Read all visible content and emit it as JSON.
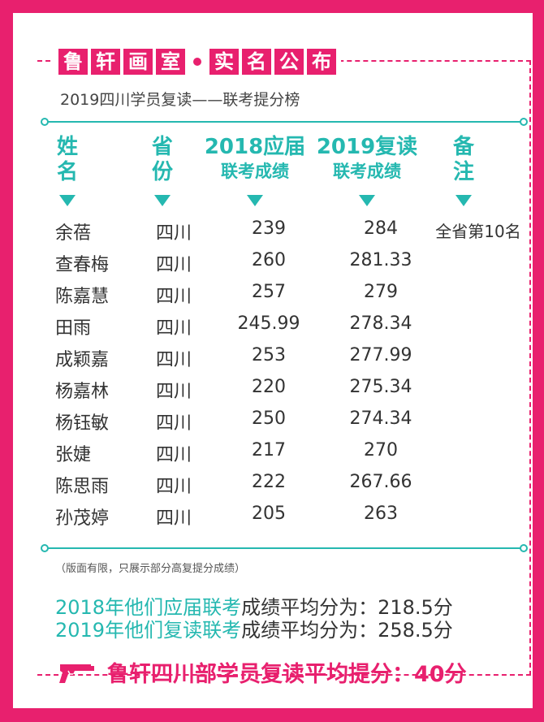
{
  "banner": {
    "left_chars": [
      "鲁",
      "轩",
      "画",
      "室"
    ],
    "right_chars": [
      "实",
      "名",
      "公",
      "布"
    ]
  },
  "subtitle": "2019四川学员复读——联考提分榜",
  "headers": {
    "name": [
      "姓",
      "名"
    ],
    "province": [
      "省",
      "份"
    ],
    "score2018": [
      "2018应届",
      "联考成绩"
    ],
    "score2019": [
      "2019复读",
      "联考成绩"
    ],
    "note": [
      "备",
      "注"
    ]
  },
  "rows": [
    {
      "name": "余蓓",
      "province": "四川",
      "s2018": "239",
      "s2019": "284",
      "note": "全省第10名"
    },
    {
      "name": "查春梅",
      "province": "四川",
      "s2018": "260",
      "s2019": "281.33",
      "note": ""
    },
    {
      "name": "陈嘉慧",
      "province": "四川",
      "s2018": "257",
      "s2019": "279",
      "note": ""
    },
    {
      "name": "田雨",
      "province": "四川",
      "s2018": "245.99",
      "s2019": "278.34",
      "note": ""
    },
    {
      "name": "成颖嘉",
      "province": "四川",
      "s2018": "253",
      "s2019": "277.99",
      "note": ""
    },
    {
      "name": "杨嘉林",
      "province": "四川",
      "s2018": "220",
      "s2019": "275.34",
      "note": ""
    },
    {
      "name": "杨钰敏",
      "province": "四川",
      "s2018": "250",
      "s2019": "274.34",
      "note": ""
    },
    {
      "name": "张婕",
      "province": "四川",
      "s2018": "217",
      "s2019": "270",
      "note": ""
    },
    {
      "name": "陈思雨",
      "province": "四川",
      "s2018": "222",
      "s2019": "267.66",
      "note": ""
    },
    {
      "name": "孙茂婷",
      "province": "四川",
      "s2018": "205",
      "s2019": "263",
      "note": ""
    }
  ],
  "footnote": "（版面有限，只展示部分高复提分成绩）",
  "averages": [
    {
      "highlight": "2018年他们应届联考",
      "rest": "成绩平均分为：218.5分"
    },
    {
      "highlight": "2019年他们复读联考",
      "rest": "成绩平均分为：258.5分"
    }
  ],
  "summary": "鲁轩四川部学员复读平均提分：40分",
  "colors": {
    "accent_pink": "#e8206e",
    "accent_teal": "#25b8b0"
  }
}
